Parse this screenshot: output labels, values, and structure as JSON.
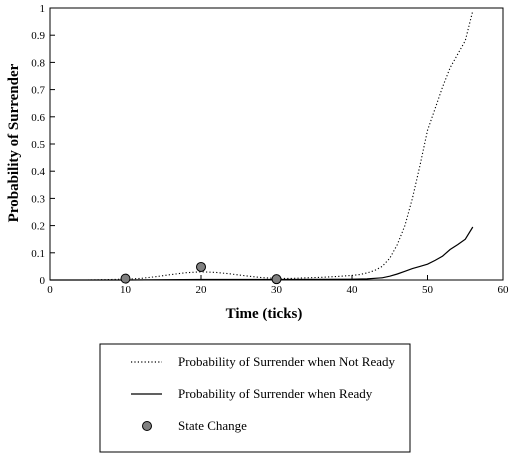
{
  "chart_data": {
    "type": "line",
    "xlabel": "Time (ticks)",
    "ylabel": "Probability of Surrender",
    "xlim": [
      0,
      60
    ],
    "ylim": [
      0,
      1
    ],
    "x_ticks": [
      0,
      10,
      20,
      30,
      40,
      50,
      60
    ],
    "x_tick_labels": [
      "0",
      "10",
      "20",
      "30",
      "40",
      "50",
      "60"
    ],
    "y_ticks": [
      0,
      0.1,
      0.2,
      0.3,
      0.4,
      0.5,
      0.6,
      0.7,
      0.8,
      0.9,
      1
    ],
    "y_tick_labels": [
      "0",
      "0.1",
      "0.2",
      "0.3",
      "0.4",
      "0.5",
      "0.6",
      "0.7",
      "0.8",
      "0.9",
      "1"
    ],
    "grid": false,
    "legend_position": "below",
    "series": [
      {
        "name": "Probability of Surrender when Not Ready",
        "style": "dotted",
        "color": "#000000",
        "x": [
          0,
          5,
          10,
          12,
          14,
          16,
          18,
          20,
          22,
          24,
          26,
          28,
          30,
          32,
          34,
          36,
          38,
          40,
          41,
          42,
          43,
          44,
          45,
          46,
          47,
          48,
          49,
          50,
          51,
          52,
          53,
          54,
          55,
          56
        ],
        "y": [
          0.0,
          0.0,
          0.003,
          0.006,
          0.012,
          0.02,
          0.027,
          0.03,
          0.028,
          0.022,
          0.015,
          0.009,
          0.006,
          0.006,
          0.008,
          0.01,
          0.013,
          0.017,
          0.02,
          0.026,
          0.035,
          0.05,
          0.08,
          0.13,
          0.2,
          0.3,
          0.42,
          0.55,
          0.63,
          0.71,
          0.78,
          0.83,
          0.88,
          0.99
        ]
      },
      {
        "name": "Probability of Surrender when Ready",
        "style": "solid",
        "color": "#000000",
        "x": [
          0,
          10,
          20,
          30,
          40,
          42,
          44,
          45,
          46,
          47,
          48,
          49,
          50,
          51,
          52,
          53,
          54,
          55,
          56
        ],
        "y": [
          0.0,
          0.0,
          0.002,
          0.002,
          0.003,
          0.004,
          0.008,
          0.014,
          0.022,
          0.032,
          0.042,
          0.05,
          0.058,
          0.072,
          0.088,
          0.112,
          0.13,
          0.15,
          0.195
        ]
      },
      {
        "name": "State Change",
        "style": "marker",
        "color": "#808080",
        "x": [
          10,
          20,
          30
        ],
        "y": [
          0.005,
          0.048,
          0.003
        ]
      }
    ],
    "legend": [
      {
        "label": "Probability of Surrender when Not Ready",
        "style": "dotted"
      },
      {
        "label": "Probability of Surrender when Ready",
        "style": "solid"
      },
      {
        "label": "State Change",
        "style": "marker"
      }
    ]
  }
}
